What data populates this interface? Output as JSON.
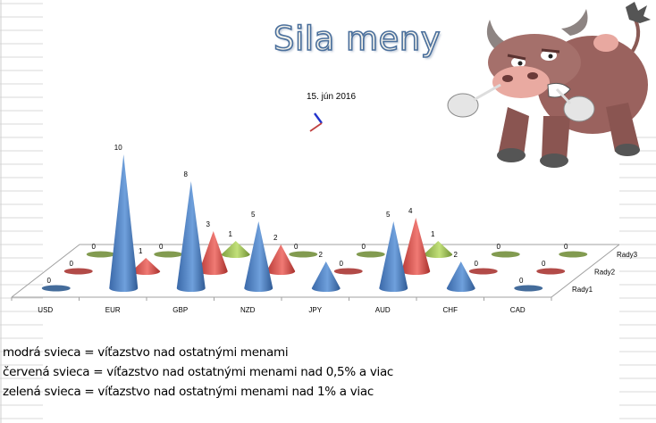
{
  "header": {
    "title": "Sila meny",
    "date": "15. jún 2016"
  },
  "chart_data": {
    "type": "bar",
    "subtype": "3d-cone",
    "categories": [
      "USD",
      "EUR",
      "GBP",
      "NZD",
      "JPY",
      "AUD",
      "CHF",
      "CAD"
    ],
    "series": [
      {
        "name": "Rady1",
        "color": "#4a7ebb",
        "values": [
          0,
          10,
          8,
          5,
          2,
          5,
          2,
          0
        ]
      },
      {
        "name": "Rady2",
        "color": "#d9534f",
        "values": [
          0,
          1,
          3,
          2,
          0,
          4,
          0,
          0
        ]
      },
      {
        "name": "Rady3",
        "color": "#9bbb59",
        "values": [
          0,
          0,
          1,
          0,
          0,
          1,
          0,
          0
        ]
      }
    ],
    "data_labels": true,
    "title": "",
    "xlabel": "",
    "ylabel": "",
    "ylim": [
      0,
      10
    ],
    "legend": "right (depth axis)"
  },
  "notes": [
    "modrá svieca = víťazstvo nad ostatnými menami",
    "červená svieca = víťazstvo nad ostatnými menami nad 0,5% a viac",
    "zelená svieca = víťazstvo nad ostatnými menami nad 1% a viac"
  ]
}
